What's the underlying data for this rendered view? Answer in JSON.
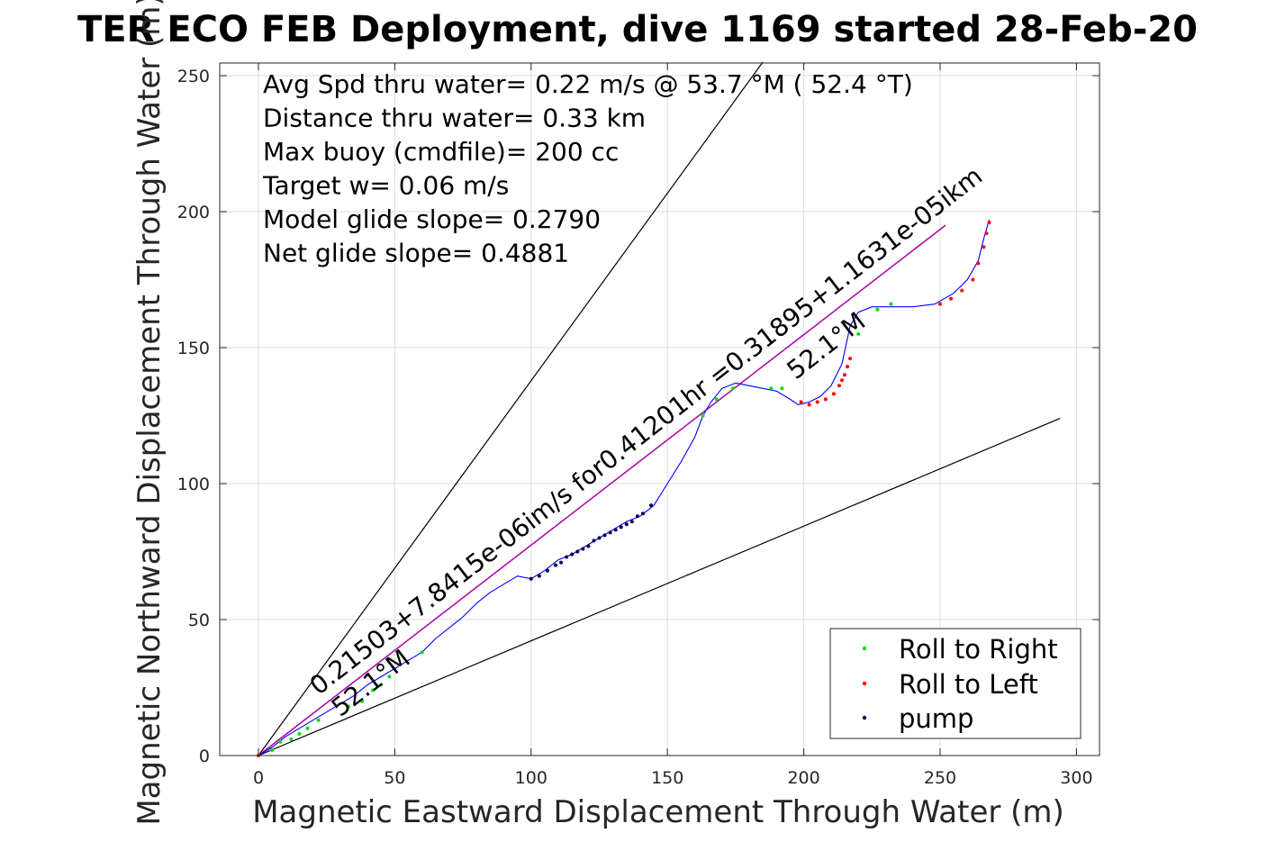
{
  "chart_data": {
    "type": "line",
    "title": "TER ECO FEB Deployment, dive 1169 started 28-Feb-20",
    "xlabel": "Magnetic Eastward Displacement Through Water (m)",
    "ylabel": "Magnetic Northward Displacement Through Water (m)",
    "xlim": [
      -15,
      310
    ],
    "ylim": [
      0,
      255
    ],
    "xticks": [
      0,
      50,
      100,
      150,
      200,
      250,
      300
    ],
    "yticks": [
      0,
      50,
      100,
      150,
      200,
      250
    ],
    "grid": true,
    "legend_position": "bottom-right",
    "colors": {
      "track": "#0000ff",
      "fit": "#aa00aa",
      "roll_right": "#00dd00",
      "roll_left": "#ff0000",
      "pump": "#000050",
      "guide": "#000000"
    },
    "annotations": [
      "Avg Spd thru water=  0.22 m/s @  53.7 °M ( 52.4 °T)",
      "Distance thru water=  0.33 km",
      "Max buoy (cmdfile)= 200 cc",
      "Target w= 0.06 m/s",
      "Model glide slope= 0.2790",
      "Net glide slope= 0.4881"
    ],
    "rotated_labels": [
      {
        "text": "0.21503+7.8415e-06im/s for0.41201hr =0.31895+1.1631e-05ikm",
        "at": [
          22,
          22
        ],
        "angle_deg": 37.8
      },
      {
        "text": "52.1°M",
        "at": [
          30,
          14
        ],
        "angle_deg": 37.8
      },
      {
        "text": "52.1°M",
        "at": [
          197,
          138
        ],
        "angle_deg": 37.8
      }
    ],
    "guide_lines": [
      {
        "name": "upper",
        "x": [
          0,
          185
        ],
        "y": [
          0,
          255
        ]
      },
      {
        "name": "lower",
        "x": [
          0,
          294
        ],
        "y": [
          0,
          124
        ]
      }
    ],
    "fit_line": {
      "x": [
        0,
        252
      ],
      "y": [
        0,
        195
      ]
    },
    "track": {
      "x": [
        0,
        5,
        10,
        15,
        20,
        25,
        30,
        35,
        40,
        45,
        50,
        55,
        60,
        65,
        70,
        75,
        80,
        85,
        90,
        95,
        100,
        105,
        110,
        115,
        120,
        125,
        130,
        135,
        140,
        145,
        150,
        155,
        160,
        163,
        166,
        170,
        175,
        180,
        185,
        190,
        195,
        198,
        202,
        206,
        210,
        214,
        217,
        220,
        225,
        232,
        240,
        248,
        255,
        260,
        264,
        266,
        268
      ],
      "y": [
        0,
        3,
        7,
        10,
        13,
        16,
        19,
        22,
        26,
        29,
        32,
        35,
        38,
        43,
        47,
        51,
        56,
        60,
        63,
        66,
        65,
        68,
        72,
        74,
        77,
        80,
        83,
        86,
        88,
        92,
        100,
        108,
        117,
        125,
        130,
        135,
        137,
        136,
        135,
        134,
        131,
        129,
        130,
        132,
        136,
        144,
        158,
        163,
        165,
        165,
        165,
        166,
        170,
        175,
        182,
        190,
        197
      ]
    },
    "series": [
      {
        "name": "Roll to Right",
        "marker": "dot",
        "color": "#00dd00",
        "x": [
          5,
          8,
          12,
          15,
          18,
          22,
          33,
          38,
          42,
          45,
          48,
          60,
          163,
          168,
          174,
          188,
          192,
          220,
          227,
          232
        ],
        "y": [
          2,
          5,
          6,
          8,
          10,
          13,
          18,
          20,
          24,
          26,
          29,
          38,
          125,
          131,
          135,
          135,
          135,
          155,
          164,
          166
        ]
      },
      {
        "name": "Roll to Left",
        "marker": "dot",
        "color": "#ff0000",
        "x": [
          0,
          199,
          202,
          205,
          208,
          211,
          213,
          214,
          215,
          216,
          217,
          250,
          254,
          258,
          262,
          264,
          266,
          267,
          268
        ],
        "y": [
          0,
          130,
          129,
          130,
          131,
          133,
          136,
          138,
          140,
          143,
          146,
          166,
          168,
          171,
          175,
          181,
          187,
          192,
          196
        ]
      },
      {
        "name": "pump",
        "marker": "dot",
        "color": "#000050",
        "x": [
          100,
          103,
          106,
          109,
          111,
          113,
          115,
          117,
          119,
          121,
          123,
          125,
          127,
          129,
          131,
          133,
          135,
          137,
          139,
          141,
          144
        ],
        "y": [
          65,
          66,
          68,
          70,
          71,
          73,
          74,
          75,
          76,
          77,
          79,
          80,
          81,
          82,
          83,
          84,
          85,
          86,
          88,
          89,
          92
        ]
      }
    ]
  }
}
